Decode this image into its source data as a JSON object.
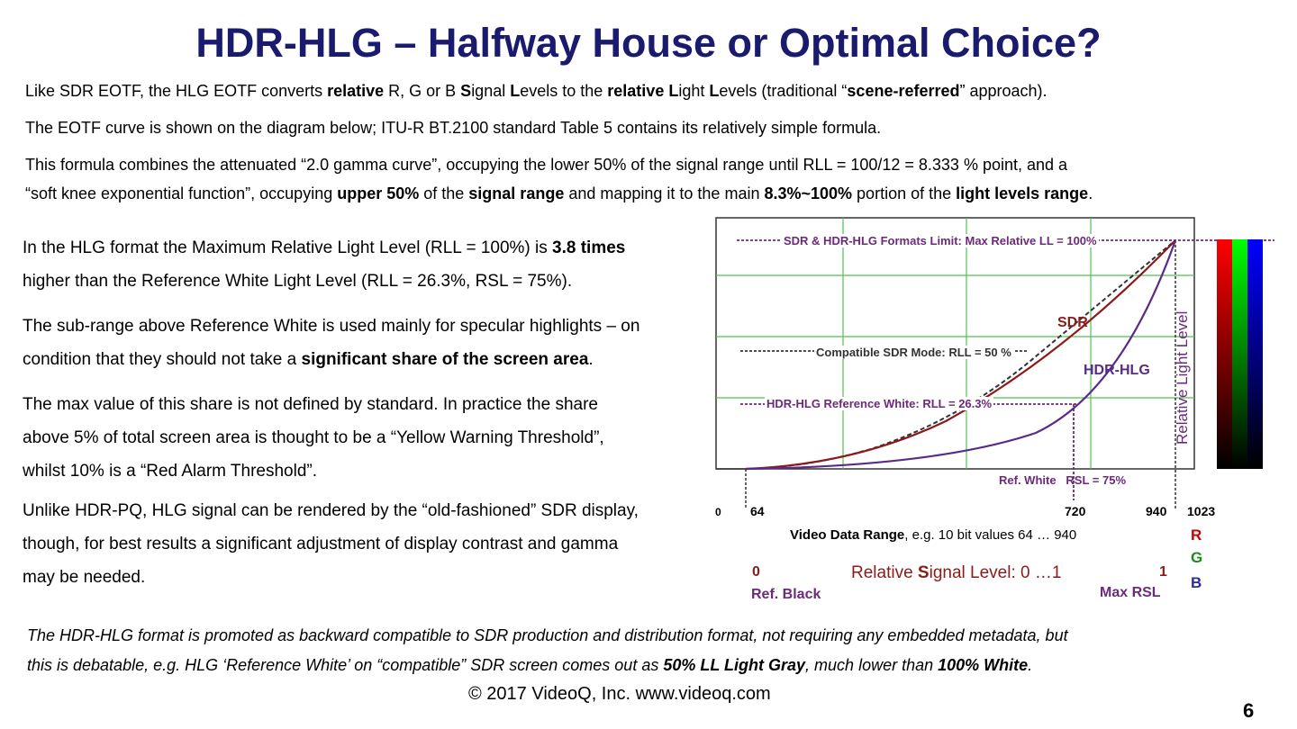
{
  "title": "HDR-HLG – Halfway House or Optimal Choice?",
  "intro": {
    "p1": {
      "a": "Like SDR EOTF, the HLG EOTF converts ",
      "b": "relative",
      "c": " R, G or B ",
      "d": "S",
      "e": "ignal ",
      "f": "L",
      "g": "evels to the ",
      "h": "relative L",
      "i": "ight ",
      "j": "L",
      "k": "evels (traditional “",
      "l": "scene-referred",
      "m": "” approach)."
    },
    "p2": "The EOTF curve is shown on the diagram below; ITU-R BT.2100 standard Table 5 contains its relatively simple formula.",
    "p3": "This formula combines the attenuated “2.0 gamma curve”, occupying the lower 50% of the signal range until RLL = 100/12 = 8.333 % point, and a",
    "p4": {
      "a": "“soft knee exponential function”, occupying ",
      "b": "upper 50%",
      "c": " of the ",
      "d": "signal range",
      "e": " and mapping it to the main ",
      "f": "8.3%~100%",
      "g": " portion of the ",
      "h": "light levels range",
      "i": "."
    }
  },
  "left": {
    "l1a": "In the HLG format the Maximum Relative Light Level (RLL = 100%)  is ",
    "l1b": "3.8 times",
    "l2": "higher than the Reference White Light Level (RLL = 26.3%, RSL = 75%).",
    "l3": "The sub-range above Reference White is used mainly for specular highlights – on",
    "l4a": "condition that they should not take a ",
    "l4b": "significant share of the screen area",
    "l4c": ".",
    "l5": "The max value of this share is not defined by standard. In practice the share",
    "l6": "above 5% of total screen area is thought to be a “Yellow Warning Threshold”,",
    "l7": "whilst 10% is a “Red Alarm Threshold”.",
    "l8": "Unlike HDR-PQ, HLG signal can be rendered by the “old-fashioned” SDR display,",
    "l9": "though, for best results a significant adjustment of display contrast and gamma",
    "l10": "may be needed."
  },
  "diagram": {
    "limit_label": "SDR & HDR-HLG Formats Limit: Max Relative LL = 100%",
    "sdr_label": "SDR",
    "compat_label": "Compatible SDR Mode: RLL = 50 %",
    "hlg_label": "HDR-HLG",
    "refwhite_label": "HDR-HLG Reference White: RLL = 26.3%",
    "yaxis_label": "Relative Light Level",
    "refwhite_rsl_a": "Ref. White",
    "refwhite_rsl_b": "RSL = 75%",
    "tick_0": "0",
    "tick_64": "64",
    "tick_720": "720",
    "tick_940": "940",
    "tick_1023": "1023",
    "video_range_a": "Video Data Range",
    "video_range_b": ", e.g. 10 bit values 64 … 940",
    "rsl_0": "0",
    "rsl_label_a": "Relative ",
    "rsl_label_b": "S",
    "rsl_label_c": "ignal Level: 0 …1",
    "rsl_1": "1",
    "ref_black": "Ref. Black",
    "max_rsl": "Max RSL",
    "r": "R",
    "g": "G",
    "b": "B",
    "colors": {
      "sdr": "#8b1a1a",
      "hlg": "#5a2a8a",
      "grid": "#4fc24f",
      "purple": "#6b2a7a"
    }
  },
  "bottom": {
    "b1": "The HDR-HLG format is promoted as backward compatible to SDR production and distribution format, not requiring any embedded metadata, but",
    "b2a": "this is debatable, e.g. HLG ‘Reference White’ on “compatible” SDR screen comes out as ",
    "b2b": "50% LL Light Gray",
    "b2c": ", much lower than ",
    "b2d": "100% White",
    "b2e": "."
  },
  "footer": "© 2017 VideoQ, Inc. www.videoq.com",
  "page_number": "6"
}
